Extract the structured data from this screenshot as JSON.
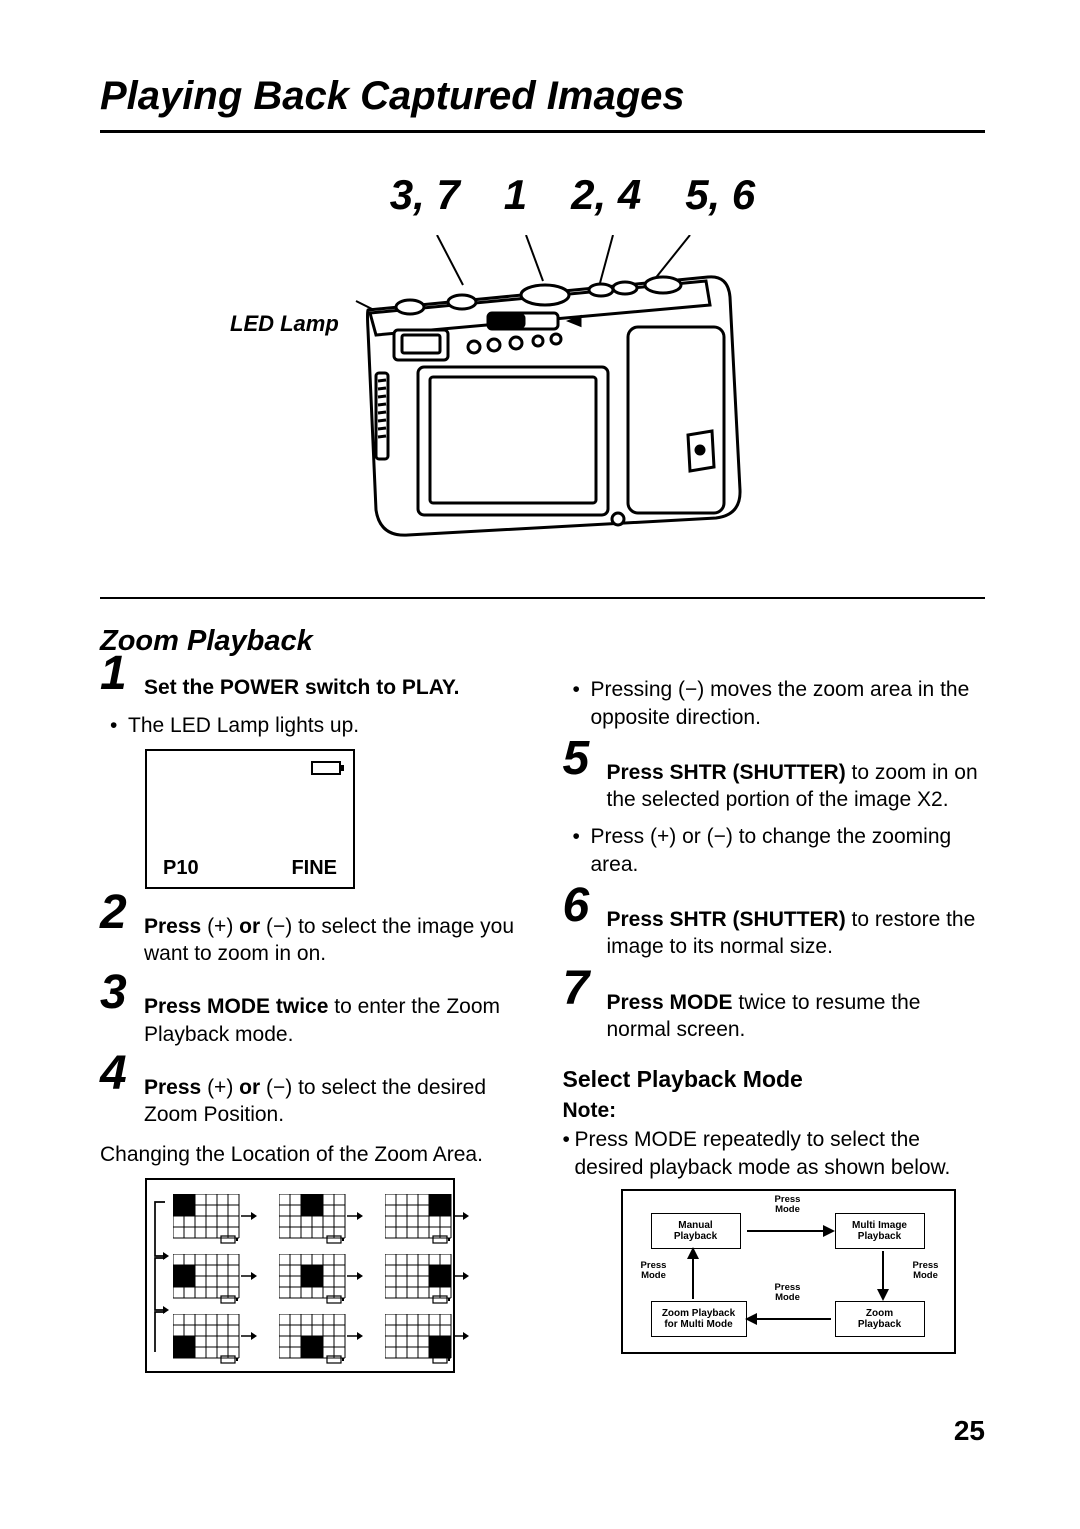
{
  "page": {
    "title": "Playing Back Captured Images",
    "number": "25"
  },
  "diagram": {
    "callouts": [
      "3, 7",
      "1",
      "2, 4",
      "5, 6"
    ],
    "led_label": "LED Lamp"
  },
  "section_title": "Zoom Playback",
  "screen": {
    "p": "P10",
    "q": "FINE"
  },
  "left": {
    "step1": {
      "num": "1",
      "bold": "Set the POWER switch to PLAY.",
      "bullet": "The LED Lamp lights up."
    },
    "step2": {
      "num": "2",
      "bold": "Press ",
      "mid": "(+) ",
      "bold2": "or ",
      "rest": "(−) to select the image you want to zoom in on."
    },
    "step3": {
      "num": "3",
      "bold": "Press MODE twice ",
      "rest": "to enter the Zoom Playback mode."
    },
    "step4": {
      "num": "4",
      "bold": "Press ",
      "mid": "(+) ",
      "bold2": "or ",
      "rest": "(−) to select the desired Zoom Position."
    },
    "changing": "Changing the Location of the Zoom Area."
  },
  "right": {
    "top_bullet": "Pressing (−) moves the zoom area in the opposite direction.",
    "step5": {
      "num": "5",
      "bold": "Press SHTR (SHUTTER) ",
      "rest": "to zoom in on the selected portion of the image X2."
    },
    "step5_bullet": "Press (+) or (−) to change the zooming area.",
    "step6": {
      "num": "6",
      "bold": "Press SHTR (SHUTTER) ",
      "rest": "to restore the image to its normal size."
    },
    "step7": {
      "num": "7",
      "bold": "Press MODE ",
      "rest": "twice to resume the normal screen."
    },
    "subhead": "Select Playback Mode",
    "note": "Note:",
    "note_text": "Press MODE repeatedly to select the desired playback mode as shown below."
  },
  "mode": {
    "manual": "Manual\nPlayback",
    "multi": "Multi Image\nPlayback",
    "zoom_multi": "Zoom Playback\nfor Multi Mode",
    "zoom": "Zoom\nPlayback",
    "press": "Press\nMode"
  }
}
